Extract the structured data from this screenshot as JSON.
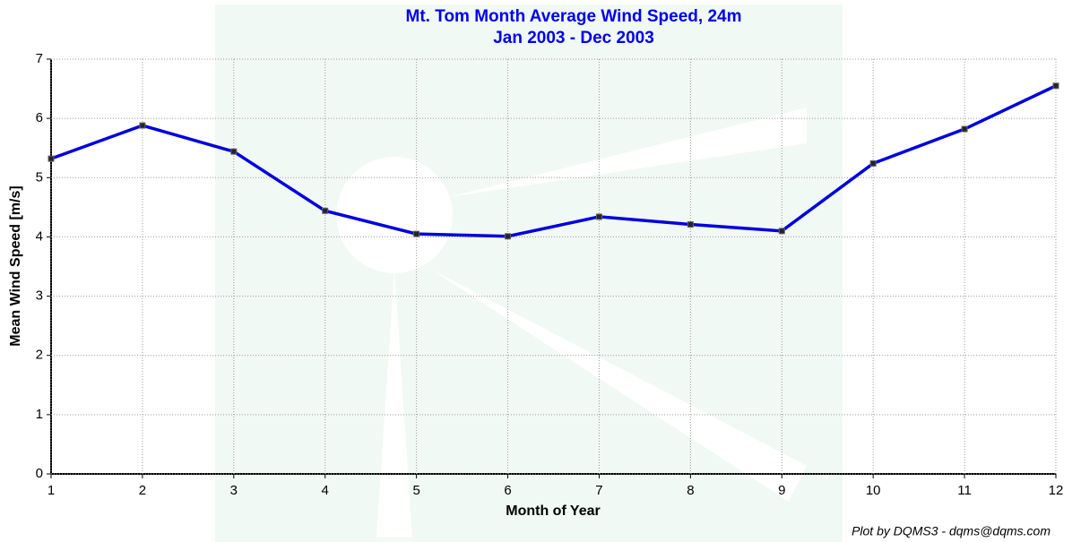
{
  "chart_data": {
    "type": "line",
    "title": "Mt. Tom Month Average Wind Speed, 24m",
    "subtitle": "Jan 2003 - Dec 2003",
    "x_label": "Month of Year",
    "y_label": "Mean Wind Speed [m/s]",
    "credit": "Plot by DQMS3 - dqms@dqms.com",
    "x": [
      1,
      2,
      3,
      4,
      5,
      6,
      7,
      8,
      9,
      10,
      11,
      12
    ],
    "values": [
      5.32,
      5.88,
      5.44,
      4.44,
      4.05,
      4.01,
      4.34,
      4.21,
      4.1,
      5.24,
      5.82,
      6.55
    ],
    "color": "#0000dd",
    "xlim": [
      1,
      12
    ],
    "xticks": [
      1,
      2,
      3,
      4,
      5,
      6,
      7,
      8,
      9,
      10,
      11,
      12
    ],
    "ylim": [
      0,
      7
    ],
    "yticks": [
      0,
      1,
      2,
      3,
      4,
      5,
      6,
      7
    ],
    "grid": true
  }
}
